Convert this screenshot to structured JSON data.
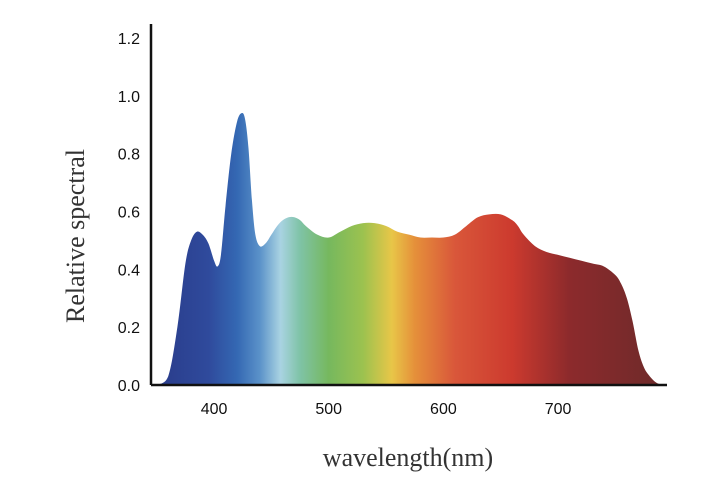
{
  "chart_data": {
    "type": "area",
    "xlabel": "wavelength(nm)",
    "ylabel": "Relative spectral",
    "xlim": [
      345,
      795
    ],
    "ylim": [
      0,
      1.2
    ],
    "x_ticks": [
      400,
      500,
      600,
      700
    ],
    "x_tick_labels": [
      "400",
      "500",
      "600",
      "700"
    ],
    "y_ticks": [
      0,
      0.2,
      0.4,
      0.6,
      0.8,
      1.0,
      1.2
    ],
    "y_tick_labels": [
      "0.0",
      "0.2",
      "0.4",
      "0.6",
      "0.8",
      "1.0",
      "1.2"
    ],
    "grid": false,
    "fill": "spectral-gradient",
    "series": [
      {
        "x": [
          350,
          360,
          368,
          375,
          380,
          385,
          390,
          395,
          400,
          403,
          406,
          410,
          415,
          420,
          424,
          427,
          430,
          433,
          436,
          440,
          445,
          450,
          455,
          460,
          465,
          470,
          475,
          480,
          490,
          500,
          510,
          520,
          530,
          540,
          550,
          560,
          570,
          580,
          590,
          600,
          610,
          620,
          630,
          640,
          650,
          660,
          665,
          670,
          680,
          690,
          700,
          710,
          720,
          730,
          740,
          750,
          755,
          760,
          765,
          770,
          775,
          780,
          785,
          790
        ],
        "y": [
          0.0,
          0.03,
          0.2,
          0.42,
          0.5,
          0.53,
          0.52,
          0.49,
          0.43,
          0.41,
          0.45,
          0.62,
          0.8,
          0.91,
          0.94,
          0.92,
          0.82,
          0.64,
          0.52,
          0.48,
          0.49,
          0.52,
          0.55,
          0.57,
          0.58,
          0.58,
          0.57,
          0.55,
          0.52,
          0.51,
          0.53,
          0.55,
          0.56,
          0.56,
          0.55,
          0.53,
          0.52,
          0.51,
          0.51,
          0.51,
          0.52,
          0.55,
          0.58,
          0.59,
          0.59,
          0.57,
          0.55,
          0.52,
          0.48,
          0.46,
          0.45,
          0.44,
          0.43,
          0.42,
          0.41,
          0.38,
          0.35,
          0.3,
          0.22,
          0.12,
          0.06,
          0.03,
          0.01,
          0.0
        ]
      }
    ],
    "gradient_stops": [
      {
        "wavelength": 360,
        "color": "#2b3f8e"
      },
      {
        "wavelength": 395,
        "color": "#2f4a9c"
      },
      {
        "wavelength": 420,
        "color": "#3468b3"
      },
      {
        "wavelength": 440,
        "color": "#5b92c9"
      },
      {
        "wavelength": 458,
        "color": "#a9d3e2"
      },
      {
        "wavelength": 475,
        "color": "#7fc3a6"
      },
      {
        "wavelength": 500,
        "color": "#76b85e"
      },
      {
        "wavelength": 530,
        "color": "#9cc24f"
      },
      {
        "wavelength": 555,
        "color": "#e8c648"
      },
      {
        "wavelength": 575,
        "color": "#e5903a"
      },
      {
        "wavelength": 610,
        "color": "#d9573a"
      },
      {
        "wavelength": 660,
        "color": "#cc3a2e"
      },
      {
        "wavelength": 710,
        "color": "#8c2a2c"
      },
      {
        "wavelength": 790,
        "color": "#6e2a2a"
      }
    ]
  }
}
